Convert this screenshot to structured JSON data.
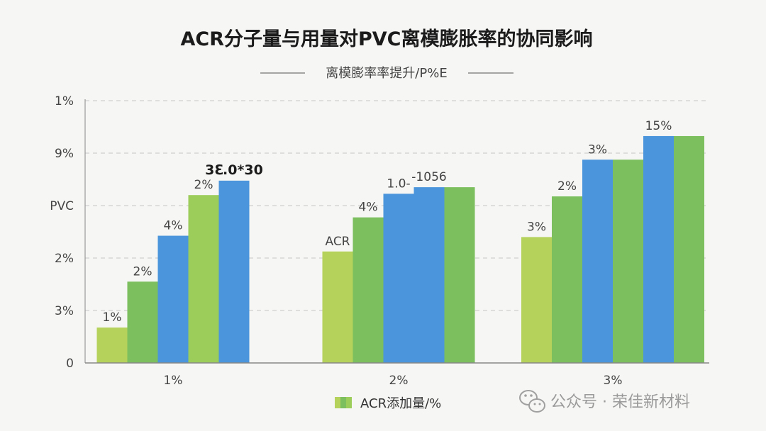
{
  "chart_data": {
    "type": "bar",
    "title": "ACR分子量与用量对PVC离模膨胀率的协同影响",
    "subtitle": "离模膨率率提升/P%E",
    "y_tick_labels": [
      "0",
      "3%",
      "2%",
      "PVC",
      "9%",
      "1%"
    ],
    "ylim": [
      0,
      100
    ],
    "grid": true,
    "categories": [
      "1%",
      "2%",
      "3%"
    ],
    "legend": {
      "label": "ACR添加量/%",
      "placement": "bottom-center"
    },
    "groups": [
      {
        "category": "1%",
        "bars": [
          {
            "value": 13.5,
            "color": "#b5d35a",
            "label": "1%"
          },
          {
            "value": 31,
            "color": "#7bbf5e",
            "label": "2%"
          },
          {
            "value": 48.5,
            "color": "#4a95dc",
            "label": "4%"
          },
          {
            "value": 64,
            "color": "#9ccc5a",
            "label": "2%"
          },
          {
            "value": 69.5,
            "color": "#4a95dc",
            "label": "3ℇ.0*30",
            "bold": true
          }
        ]
      },
      {
        "category": "2%",
        "bars": [
          {
            "value": 42.5,
            "color": "#b5d35a",
            "label": "ACR"
          },
          {
            "value": 55.5,
            "color": "#7bbf5e",
            "label": "4%"
          },
          {
            "value": 64.5,
            "color": "#4a95dc",
            "label": "1.0-"
          },
          {
            "value": 67,
            "color": "#4a95dc",
            "label": "-1056"
          },
          {
            "value": 67,
            "color": "#7bbf5e",
            "label": ""
          }
        ]
      },
      {
        "category": "3%",
        "bars": [
          {
            "value": 48,
            "color": "#b5d35a",
            "label": "3%"
          },
          {
            "value": 63.5,
            "color": "#7bbf5e",
            "label": "2%"
          },
          {
            "value": 77.5,
            "color": "#4a95dc",
            "label": "3%"
          },
          {
            "value": 77.5,
            "color": "#7bbf5e",
            "label": ""
          },
          {
            "value": 86.5,
            "color": "#4a95dc",
            "label": "15%"
          },
          {
            "value": 86.5,
            "color": "#7bbf5e",
            "label": ""
          }
        ]
      }
    ]
  },
  "watermark": {
    "text": "公众号 · 荣佳新材料",
    "icon": "wechat-icon"
  }
}
